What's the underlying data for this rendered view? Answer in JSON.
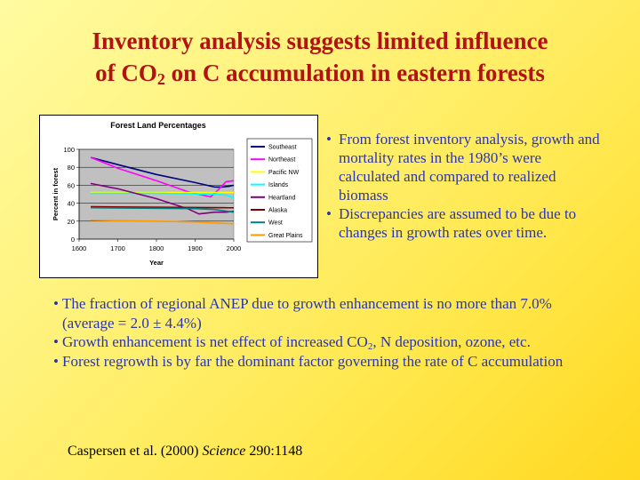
{
  "title": {
    "line1": "Inventory analysis suggests limited influence",
    "line2_pre": "of CO",
    "line2_sub": "2",
    "line2_post": " on C accumulation in eastern forests"
  },
  "right_bullets": [
    {
      "marker": "•",
      "text": "From forest inventory analysis, growth and mortality rates in the 1980’s were calculated and compared to realized biomass"
    },
    {
      "marker": "•",
      "text": "Discrepancies are assumed to be due to changes in growth rates over time."
    }
  ],
  "bottom_bullets": {
    "b1": {
      "marker": "•",
      "text": "The fraction of regional ANEP due to growth enhancement is no more than 7.0% (average = 2.0 ± 4.4%)"
    },
    "b2": {
      "marker": "•",
      "pre": "Growth enhancement is net effect of increased CO",
      "sub": "2",
      "post": ", N deposition, ozone, etc."
    },
    "b3": {
      "marker": "•",
      "text": "Forest regrowth is by far the dominant factor governing the rate of C accumulation"
    }
  },
  "citation": {
    "authors": "Caspersen et al. (2000) ",
    "journal": "Science",
    "ref": " 290:1148"
  },
  "chart_data": {
    "type": "line",
    "title": "Forest Land Percentages",
    "xlabel": "Year",
    "ylabel": "Percent in forest",
    "xlim": [
      1600,
      2000
    ],
    "ylim": [
      0,
      100
    ],
    "xticks": [
      1600,
      1700,
      1800,
      1900,
      2000
    ],
    "yticks": [
      0,
      20,
      40,
      60,
      80,
      100
    ],
    "grid": true,
    "plot_background": "#c0c0c0",
    "legend_position": "right",
    "series": [
      {
        "name": "Southeast",
        "color": "#000080",
        "x": [
          1630,
          1700,
          1800,
          1900,
          1950,
          1970,
          1990,
          2000
        ],
        "y": [
          91,
          83,
          72,
          63,
          58,
          58,
          59,
          60
        ]
      },
      {
        "name": "Northeast",
        "color": "#ff00ff",
        "x": [
          1630,
          1700,
          1800,
          1880,
          1910,
          1940,
          1960,
          1980,
          2000
        ],
        "y": [
          91,
          79,
          65,
          53,
          50,
          47,
          55,
          64,
          65
        ]
      },
      {
        "name": "Pacific NW",
        "color": "#ffff00",
        "x": [
          1630,
          2000
        ],
        "y": [
          52,
          52
        ]
      },
      {
        "name": "Islands",
        "color": "#00ffff",
        "x": [
          1630,
          1800,
          1950,
          1980,
          2000
        ],
        "y": [
          51,
          51,
          50,
          49,
          46
        ]
      },
      {
        "name": "Heartland",
        "color": "#800080",
        "x": [
          1630,
          1700,
          1800,
          1880,
          1910,
          1950,
          1980,
          2000
        ],
        "y": [
          62,
          56,
          45,
          34,
          28,
          30,
          30,
          31
        ]
      },
      {
        "name": "Alaska",
        "color": "#800000",
        "x": [
          1630,
          2000
        ],
        "y": [
          36,
          35
        ]
      },
      {
        "name": "West",
        "color": "#008080",
        "x": [
          1630,
          1900,
          1950,
          2000
        ],
        "y": [
          35,
          34,
          33,
          30
        ]
      },
      {
        "name": "Great Plains",
        "color": "#ff9900",
        "x": [
          1630,
          1800,
          1900,
          2000
        ],
        "y": [
          21,
          20,
          19,
          17
        ]
      }
    ]
  }
}
